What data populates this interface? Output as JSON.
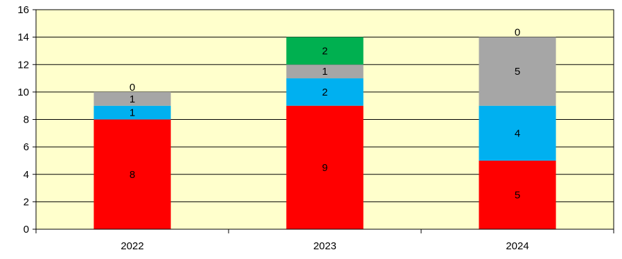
{
  "chart_data": {
    "type": "bar",
    "stacked": true,
    "categories": [
      "2022",
      "2023",
      "2024"
    ],
    "series": [
      {
        "color": "#ff0000",
        "values": [
          8,
          9,
          5
        ]
      },
      {
        "color": "#00b0f0",
        "values": [
          1,
          2,
          4
        ]
      },
      {
        "color": "#a6a6a6",
        "values": [
          1,
          1,
          5
        ]
      },
      {
        "color": "#00b050",
        "values": [
          0,
          2,
          0
        ]
      }
    ],
    "ylim": [
      0,
      16
    ],
    "yticks": [
      0,
      2,
      4,
      6,
      8,
      10,
      12,
      14,
      16
    ],
    "grid": true,
    "legend": "none",
    "plot_background": "#ffffcc"
  }
}
